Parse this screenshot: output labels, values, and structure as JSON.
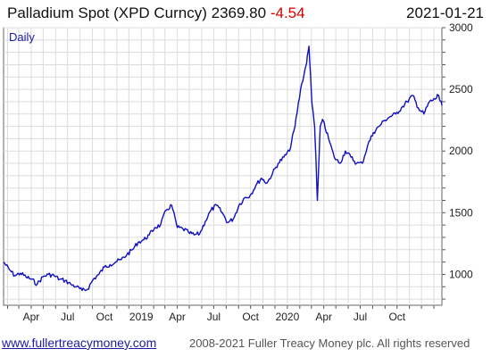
{
  "header": {
    "title_main": "Palladium Spot (XPD Curncy) 2369.80",
    "title_change": "-4.54",
    "date": "2021-01-21"
  },
  "footer": {
    "site": "www.fullertreacymoney.com",
    "copyright": "2008-2021 Fuller Treacy Money plc. All rights reserved"
  },
  "chart_data": {
    "type": "line",
    "period_label": "Daily",
    "x_tick_labels": [
      "Apr",
      "Jul",
      "Oct",
      "2019",
      "Apr",
      "Jul",
      "Oct",
      "2020",
      "Apr",
      "Jul",
      "Oct"
    ],
    "x_tick_dates": [
      "2018-04-01",
      "2018-07-01",
      "2018-10-01",
      "2019-01-01",
      "2019-04-01",
      "2019-07-01",
      "2019-10-01",
      "2020-01-01",
      "2020-04-01",
      "2020-07-01",
      "2020-10-01"
    ],
    "xlim": [
      "2018-01-22",
      "2021-01-21"
    ],
    "ylim": [
      750,
      3000
    ],
    "y_ticks": [
      1000,
      1500,
      2000,
      2500,
      3000
    ],
    "grid": true,
    "colors": {
      "line": "#1010c0",
      "grid": "#dcdcdc",
      "axis": "#555555"
    },
    "series": [
      {
        "x": [
          "2018-01-22",
          "2018-02-05",
          "2018-02-19",
          "2018-03-05",
          "2018-03-19",
          "2018-04-02",
          "2018-04-16",
          "2018-04-30",
          "2018-05-14",
          "2018-05-28",
          "2018-06-11",
          "2018-06-25",
          "2018-07-09",
          "2018-07-23",
          "2018-08-06",
          "2018-08-20",
          "2018-09-03",
          "2018-09-17",
          "2018-10-01",
          "2018-10-15",
          "2018-10-29",
          "2018-11-12",
          "2018-11-26",
          "2018-12-10",
          "2018-12-24",
          "2019-01-07",
          "2019-01-21",
          "2019-02-04",
          "2019-02-18",
          "2019-03-04",
          "2019-03-18",
          "2019-04-01",
          "2019-04-15",
          "2019-04-29",
          "2019-05-13",
          "2019-05-27",
          "2019-06-10",
          "2019-06-24",
          "2019-07-08",
          "2019-07-22",
          "2019-08-05",
          "2019-08-19",
          "2019-09-02",
          "2019-09-16",
          "2019-09-30",
          "2019-10-14",
          "2019-10-28",
          "2019-11-11",
          "2019-11-25",
          "2019-12-09",
          "2019-12-23",
          "2020-01-06",
          "2020-01-20",
          "2020-02-03",
          "2020-02-17",
          "2020-02-24",
          "2020-03-02",
          "2020-03-09",
          "2020-03-16",
          "2020-03-23",
          "2020-03-30",
          "2020-04-13",
          "2020-04-27",
          "2020-05-11",
          "2020-05-25",
          "2020-06-08",
          "2020-06-22",
          "2020-07-06",
          "2020-07-20",
          "2020-08-03",
          "2020-08-17",
          "2020-08-31",
          "2020-09-14",
          "2020-09-28",
          "2020-10-12",
          "2020-10-26",
          "2020-11-09",
          "2020-11-23",
          "2020-12-07",
          "2020-12-21",
          "2021-01-04",
          "2021-01-11",
          "2021-01-21"
        ],
        "y": [
          1100,
          1040,
          990,
          1010,
          980,
          960,
          920,
          980,
          1000,
          990,
          960,
          950,
          920,
          900,
          870,
          880,
          960,
          1000,
          1060,
          1080,
          1100,
          1120,
          1160,
          1200,
          1260,
          1280,
          1320,
          1380,
          1400,
          1520,
          1560,
          1380,
          1370,
          1340,
          1320,
          1330,
          1430,
          1520,
          1560,
          1500,
          1420,
          1450,
          1560,
          1620,
          1640,
          1720,
          1780,
          1740,
          1820,
          1900,
          1950,
          2000,
          2200,
          2500,
          2700,
          2850,
          2400,
          2200,
          1600,
          2200,
          2250,
          2100,
          1950,
          1900,
          2000,
          1950,
          1900,
          1900,
          2050,
          2150,
          2200,
          2250,
          2280,
          2300,
          2350,
          2400,
          2450,
          2350,
          2300,
          2400,
          2420,
          2450,
          2370
        ]
      }
    ]
  }
}
